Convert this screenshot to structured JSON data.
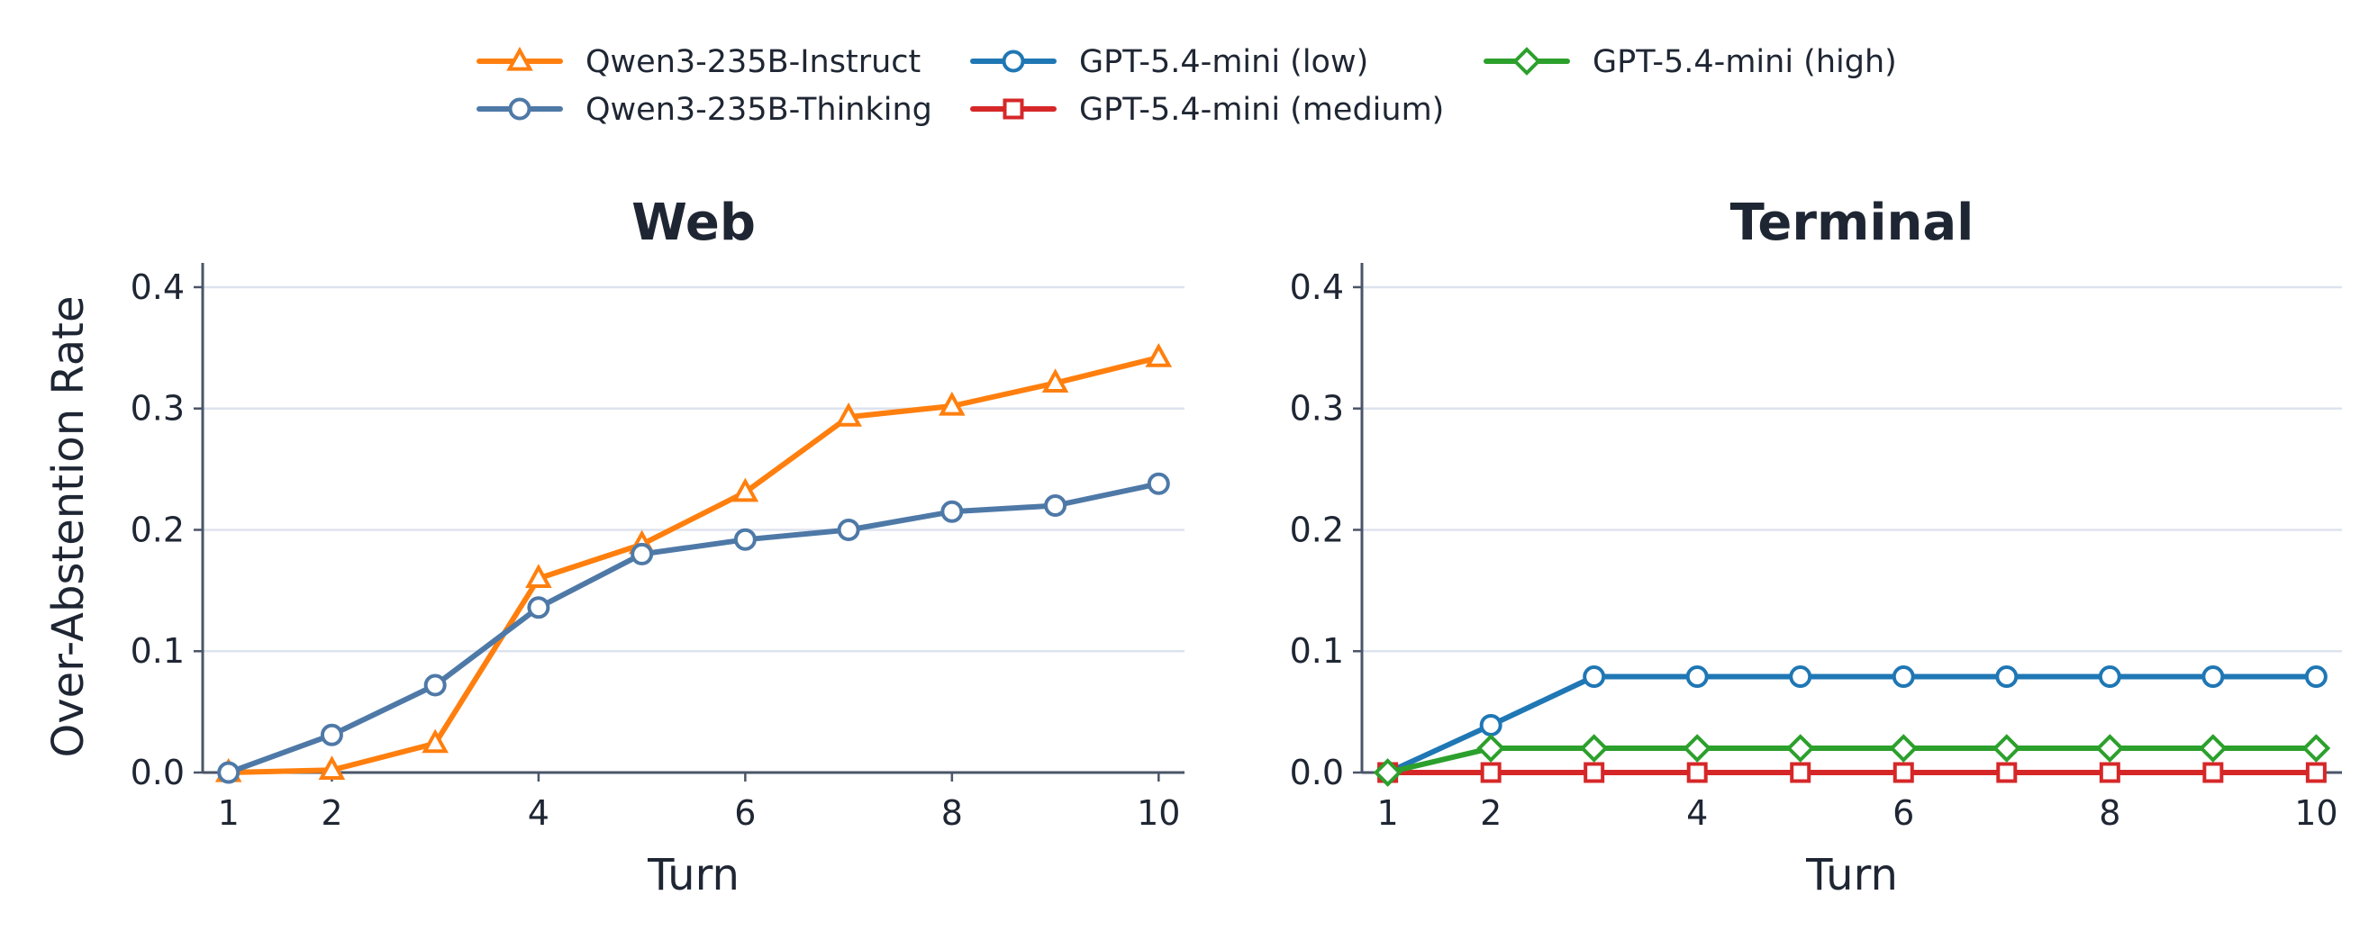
{
  "chart_data": [
    {
      "type": "line",
      "title": "Web",
      "xlabel": "Turn",
      "ylabel": "Over-Abstention Rate",
      "x": [
        1,
        2,
        3,
        4,
        5,
        6,
        7,
        8,
        9,
        10
      ],
      "xticks": [
        1,
        2,
        4,
        6,
        8,
        10
      ],
      "xlim": [
        0.75,
        10.25
      ],
      "ylim": [
        0,
        0.42
      ],
      "yticks": [
        0.0,
        0.1,
        0.2,
        0.3,
        0.4
      ],
      "ytick_labels": [
        "0.0",
        "0.1",
        "0.2",
        "0.3",
        "0.4"
      ],
      "grid": "horizontal",
      "series": [
        {
          "name": "Qwen3-235B-Instruct",
          "color": "#ff7f0e",
          "marker": "triangle",
          "values": [
            0.0,
            0.002,
            0.024,
            0.16,
            0.188,
            0.231,
            0.293,
            0.302,
            0.321,
            0.342
          ]
        },
        {
          "name": "Qwen3-235B-Thinking",
          "color": "#4e79a7",
          "marker": "circle",
          "values": [
            0.0,
            0.031,
            0.072,
            0.136,
            0.18,
            0.192,
            0.2,
            0.215,
            0.22,
            0.238
          ]
        }
      ]
    },
    {
      "type": "line",
      "title": "Terminal",
      "xlabel": "Turn",
      "ylabel": "",
      "x": [
        1,
        2,
        3,
        4,
        5,
        6,
        7,
        8,
        9,
        10
      ],
      "xticks": [
        1,
        2,
        4,
        6,
        8,
        10
      ],
      "xlim": [
        0.75,
        10.25
      ],
      "ylim": [
        0,
        0.42
      ],
      "yticks": [
        0.0,
        0.1,
        0.2,
        0.3,
        0.4
      ],
      "ytick_labels": [
        "0.0",
        "0.1",
        "0.2",
        "0.3",
        "0.4"
      ],
      "grid": "horizontal",
      "series": [
        {
          "name": "GPT-5.4-mini (low)",
          "color": "#1f77b4",
          "marker": "circle",
          "values": [
            0.0,
            0.039,
            0.079,
            0.079,
            0.079,
            0.079,
            0.079,
            0.079,
            0.079,
            0.079
          ]
        },
        {
          "name": "GPT-5.4-mini (medium)",
          "color": "#d62728",
          "marker": "square",
          "values": [
            0.0,
            0.0,
            0.0,
            0.0,
            0.0,
            0.0,
            0.0,
            0.0,
            0.0,
            0.0
          ]
        },
        {
          "name": "GPT-5.4-mini (high)",
          "color": "#2ca02c",
          "marker": "diamond",
          "values": [
            0.0,
            0.02,
            0.02,
            0.02,
            0.02,
            0.02,
            0.02,
            0.02,
            0.02,
            0.02
          ]
        }
      ]
    }
  ],
  "legend": {
    "placement": "top-center",
    "items": [
      {
        "label": "Qwen3-235B-Instruct",
        "color": "#ff7f0e",
        "marker": "triangle"
      },
      {
        "label": "Qwen3-235B-Thinking",
        "color": "#4e79a7",
        "marker": "circle"
      },
      {
        "label": "GPT-5.4-mini (low)",
        "color": "#1f77b4",
        "marker": "circle"
      },
      {
        "label": "GPT-5.4-mini (medium)",
        "color": "#d62728",
        "marker": "square"
      },
      {
        "label": "GPT-5.4-mini (high)",
        "color": "#2ca02c",
        "marker": "diamond"
      }
    ]
  }
}
